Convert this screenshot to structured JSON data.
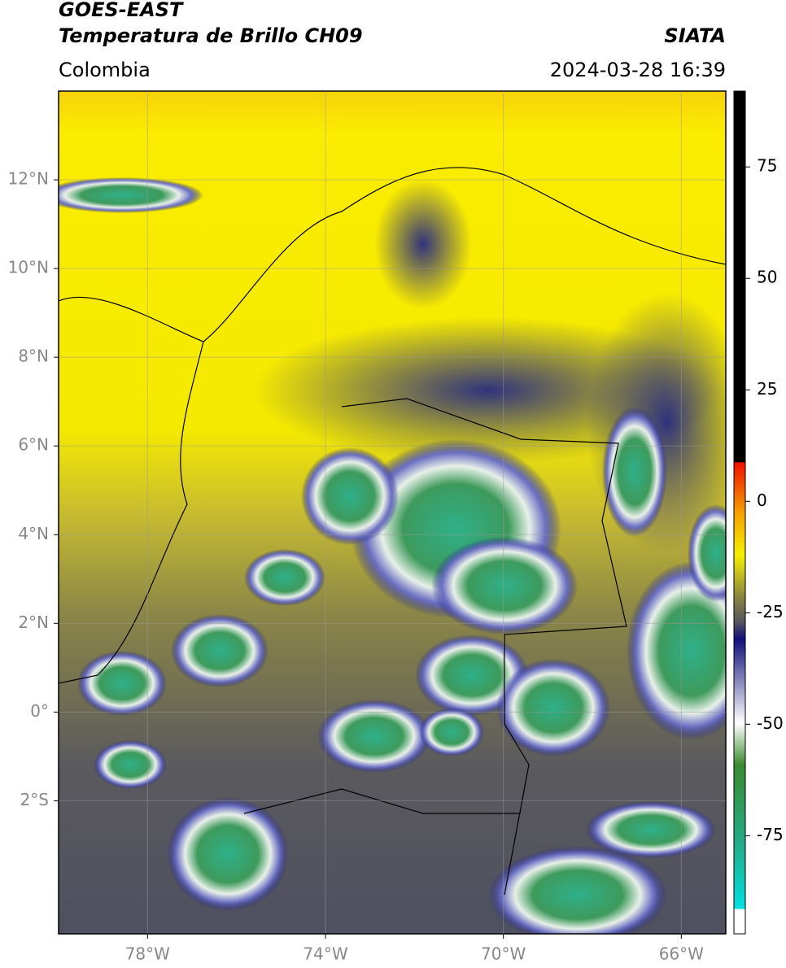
{
  "header": {
    "title": "GOES-EAST",
    "subtitle": "Temperatura de Brillo CH09",
    "source": "SIATA",
    "region": "Colombia",
    "datetime": "2024-03-28 16:39"
  },
  "map": {
    "xlim": [
      -80,
      -65
    ],
    "ylim": [
      -5,
      14
    ],
    "xticks": [
      {
        "value": -78,
        "label": "78°W"
      },
      {
        "value": -74,
        "label": "74°W"
      },
      {
        "value": -70,
        "label": "70°W"
      },
      {
        "value": -66,
        "label": "66°W"
      }
    ],
    "yticks": [
      {
        "value": 12,
        "label": "12°N"
      },
      {
        "value": 10,
        "label": "10°N"
      },
      {
        "value": 8,
        "label": "8°N"
      },
      {
        "value": 6,
        "label": "6°N"
      },
      {
        "value": 4,
        "label": "4°N"
      },
      {
        "value": 2,
        "label": "2°N"
      },
      {
        "value": 0,
        "label": "0°"
      },
      {
        "value": -2,
        "label": "2°S"
      }
    ]
  },
  "colorbar": {
    "lim": [
      -97,
      92
    ],
    "ticks": [
      75,
      50,
      25,
      0,
      -25,
      -50,
      -75
    ]
  }
}
